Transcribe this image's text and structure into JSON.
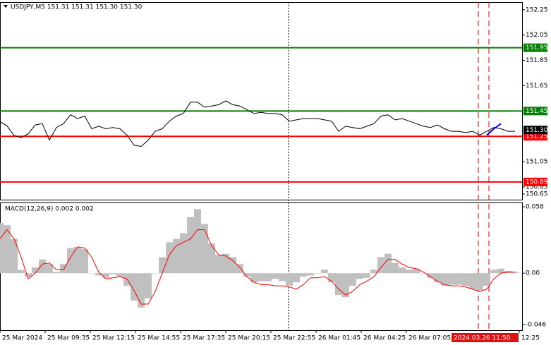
{
  "chart_data": [
    {
      "type": "line",
      "title": "USDJPY,M5  151.31 151.31 151.30 151.30",
      "x": [
        0,
        5,
        10,
        15,
        20,
        25,
        30,
        35,
        40,
        45,
        50,
        55,
        60,
        65,
        70,
        75,
        80,
        85,
        90,
        95,
        100,
        105,
        110,
        115,
        120,
        125,
        130,
        135,
        140,
        145,
        150,
        155,
        160,
        165,
        170,
        175,
        180,
        185,
        190,
        195,
        200,
        205,
        210,
        215,
        220,
        225,
        230,
        235,
        240,
        245,
        250,
        255,
        260,
        265,
        270,
        275,
        280,
        285,
        290,
        295,
        300,
        305,
        310,
        315,
        320,
        325,
        330,
        335,
        340,
        345,
        350,
        355,
        360,
        365
      ],
      "xlim": [
        0,
        370
      ],
      "ylim": [
        150.75,
        152.31
      ],
      "yticks": [
        150.65,
        150.85,
        151.05,
        151.65,
        151.85,
        152.05,
        152.25
      ],
      "series": [
        {
          "color": "#000000",
          "values": [
            151.367,
            151.333,
            151.256,
            151.24,
            151.27,
            151.34,
            151.35,
            151.22,
            151.32,
            151.35,
            151.42,
            151.39,
            151.41,
            151.31,
            151.33,
            151.31,
            151.32,
            151.31,
            151.26,
            151.18,
            151.17,
            151.22,
            151.29,
            151.31,
            151.37,
            151.41,
            151.43,
            151.52,
            151.52,
            151.48,
            151.49,
            151.5,
            151.53,
            151.5,
            151.49,
            151.46,
            151.43,
            151.44,
            151.43,
            151.43,
            151.42,
            151.37,
            151.38,
            151.39,
            151.39,
            151.39,
            151.38,
            151.37,
            151.29,
            151.33,
            151.32,
            151.31,
            151.33,
            151.35,
            151.41,
            151.42,
            151.38,
            151.39,
            151.37,
            151.35,
            151.33,
            151.32,
            151.34,
            151.31,
            151.29,
            151.29,
            151.28,
            151.29,
            151.26,
            151.29,
            151.32,
            151.31,
            151.29,
            151.29
          ]
        },
        {
          "color": "#0000ff",
          "values": [
            null,
            null,
            null,
            null,
            null,
            null,
            null,
            null,
            null,
            null,
            null,
            null,
            null,
            null,
            null,
            null,
            null,
            null,
            null,
            null,
            null,
            null,
            null,
            null,
            null,
            null,
            null,
            null,
            null,
            null,
            null,
            null,
            null,
            null,
            null,
            null,
            null,
            null,
            null,
            null,
            null,
            null,
            null,
            null,
            null,
            null,
            null,
            null,
            null,
            null,
            null,
            null,
            null,
            null,
            null,
            null,
            null,
            null,
            null,
            null,
            null,
            null,
            null,
            null,
            null,
            null,
            null,
            null,
            null,
            151.26,
            151.31,
            151.35,
            null,
            null
          ]
        }
      ],
      "levels": [
        {
          "value": 151.95,
          "color": "#008000"
        },
        {
          "value": 151.45,
          "color": "#008000"
        },
        {
          "value": 151.25,
          "color": "#ff0000"
        },
        {
          "value": 150.89,
          "color": "#ff0000"
        }
      ],
      "price_label": {
        "value": 151.3,
        "label": "151.30"
      },
      "vlines": [
        {
          "x": 204.5,
          "color": "#000000",
          "style": "dotted"
        },
        {
          "x": 339,
          "color": "#cc0000",
          "style": "dashed"
        },
        {
          "x": 346.5,
          "color": "#cc0000",
          "style": "dashed"
        }
      ]
    },
    {
      "type": "macd",
      "title": "MACD(12,26,9) 0.002 0.002",
      "ylim": [
        -0.0498,
        0.0618
      ],
      "yticks": [
        0.058,
        {
          "value": 0,
          "label": "0.00"
        },
        -0.046
      ],
      "histogram": {
        "color": "#c0c0c0",
        "values": [
          0.044,
          0.042,
          0.03,
          0.003,
          -0.003,
          0.005,
          0.012,
          0.008,
          0.001,
          0.008,
          0.022,
          0.023,
          0.021,
          0,
          -0.002,
          -0.004,
          -0.001,
          -0.003,
          -0.011,
          -0.024,
          -0.03,
          -0.022,
          0,
          0.014,
          0.027,
          0.03,
          0.035,
          0.049,
          0.056,
          0.043,
          0.026,
          0.016,
          0.017,
          0.014,
          0.008,
          -0.003,
          -0.008,
          -0.007,
          -0.007,
          -0.005,
          -0.007,
          -0.011,
          -0.008,
          -0.003,
          -0.002,
          0,
          0.003,
          -0.008,
          -0.019,
          -0.021,
          -0.011,
          -0.005,
          -0.004,
          0.003,
          0.014,
          0.017,
          0.009,
          0.005,
          0.003,
          0.004,
          0,
          -0.004,
          -0.008,
          -0.011,
          -0.01,
          -0.01,
          -0.011,
          -0.014,
          -0.015,
          -0.011,
          0.003,
          0.004,
          0.002,
          0.001
        ]
      },
      "signal": {
        "color": "#ff0000",
        "values": [
          0.03,
          0.038,
          0.03,
          0.014,
          -0.005,
          0,
          0.008,
          0.009,
          0.003,
          0.003,
          0.014,
          0.023,
          0.022,
          0.014,
          0.001,
          -0.005,
          -0.004,
          -0.003,
          -0.005,
          -0.015,
          -0.027,
          -0.027,
          -0.016,
          0,
          0.016,
          0.024,
          0.027,
          0.03,
          0.038,
          0.038,
          0.024,
          0.016,
          0.015,
          0.011,
          0.005,
          -0.003,
          -0.008,
          -0.01,
          -0.01,
          -0.011,
          -0.011,
          -0.012,
          -0.014,
          -0.01,
          -0.004,
          -0.004,
          -0.003,
          -0.007,
          -0.014,
          -0.019,
          -0.016,
          -0.01,
          -0.007,
          -0.003,
          0.005,
          0.012,
          0.012,
          0.008,
          0.005,
          0.004,
          0.001,
          -0.003,
          -0.007,
          -0.01,
          -0.011,
          -0.011,
          -0.012,
          -0.014,
          -0.016,
          -0.014,
          -0.005,
          0,
          0.001,
          0.001
        ]
      },
      "xticks": [
        {
          "value": 0,
          "label": "25 Mar 2024"
        },
        {
          "value": 32,
          "label": "25 Mar 09:35"
        },
        {
          "value": 64,
          "label": "25 Mar 12:15"
        },
        {
          "value": 96,
          "label": "25 Mar 14:55"
        },
        {
          "value": 128,
          "label": "25 Mar 17:35"
        },
        {
          "value": 160,
          "label": "25 Mar 20:15"
        },
        {
          "value": 192,
          "label": "25 Mar 22:55"
        },
        {
          "value": 224,
          "label": "26 Mar 01:45"
        },
        {
          "value": 256,
          "label": "26 Mar 04:25"
        },
        {
          "value": 288,
          "label": "26 Mar 07:05"
        },
        {
          "value": 368,
          "label": "12:25"
        }
      ],
      "cursor_label": {
        "value": 320,
        "label": "2024.03.26 11:50"
      }
    }
  ]
}
